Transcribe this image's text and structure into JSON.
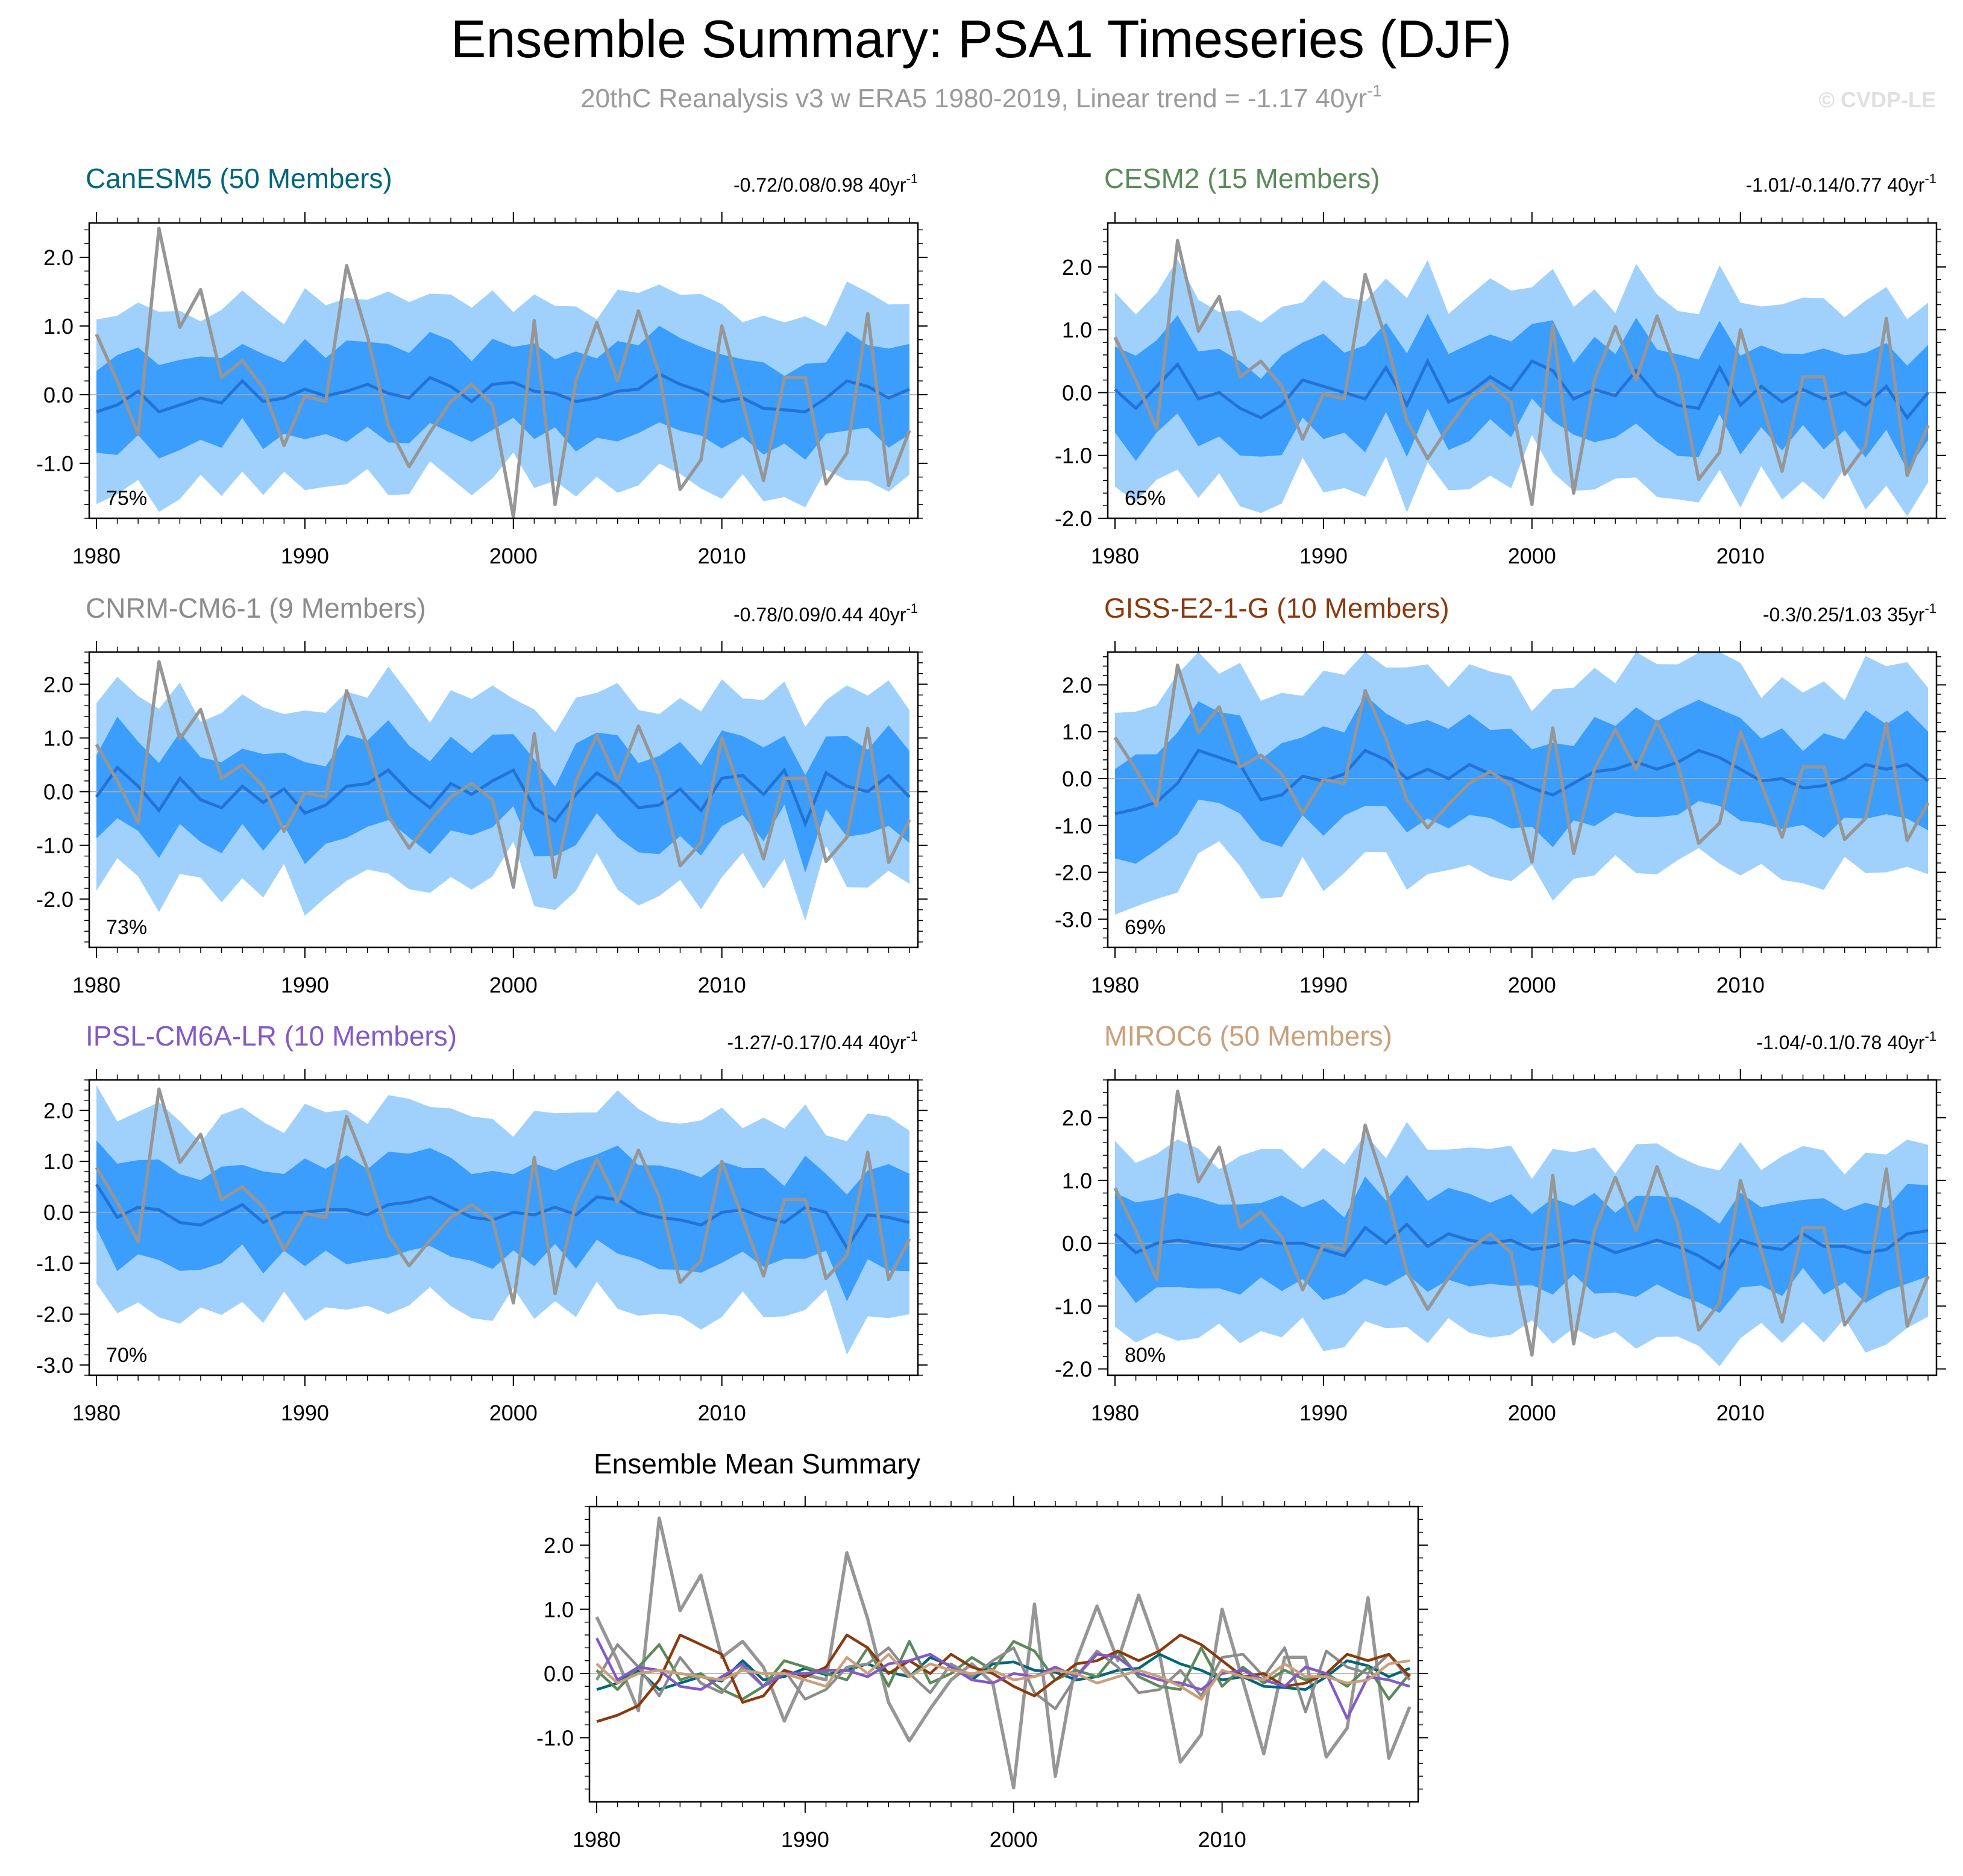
{
  "title": "Ensemble Summary: PSA1 Timeseries (DJF)",
  "subtitle": "20thC Reanalysis v3 w ERA5 1980-2019, Linear trend = -1.17 40yr",
  "subtitle_sup": "-1",
  "credit": "© CVDP-LE",
  "colors": {
    "outer_band": "#9fd1fc",
    "inner_band": "#3b9dfc",
    "ensemble_mean": "#2373d6",
    "observed": "#969696",
    "zero_line": "#aaaaaa"
  },
  "observed": {
    "name": "20thC Reanalysis v3 w ERA5",
    "years": [
      1980,
      1981,
      1982,
      1983,
      1984,
      1985,
      1986,
      1987,
      1988,
      1989,
      1990,
      1991,
      1992,
      1993,
      1994,
      1995,
      1996,
      1997,
      1998,
      1999,
      2000,
      2001,
      2002,
      2003,
      2004,
      2005,
      2006,
      2007,
      2008,
      2009,
      2010,
      2011,
      2012,
      2013,
      2014,
      2015,
      2016,
      2017,
      2018,
      2019
    ],
    "values": [
      0.88,
      0.2,
      -0.58,
      2.42,
      0.98,
      1.53,
      0.25,
      0.5,
      0.1,
      -0.74,
      -0.02,
      -0.1,
      1.88,
      0.85,
      -0.45,
      -1.05,
      -0.55,
      -0.1,
      0.15,
      -0.15,
      -1.78,
      1.08,
      -1.6,
      0.2,
      1.05,
      0.2,
      1.22,
      0.3,
      -1.38,
      -0.95,
      1.0,
      -0.12,
      -1.25,
      0.25,
      0.25,
      -1.3,
      -0.85,
      1.18,
      -1.32,
      -0.52
    ]
  },
  "chart_data": [
    {
      "type": "area",
      "title": "CanESM5 (50 Members)",
      "title_color": "#00677a",
      "range_text": "-0.72/0.08/0.98 40yr",
      "range_sup": "-1",
      "percent_label": "75%",
      "x_start": 1980,
      "x_ticks": [
        "1980",
        "1990",
        "2000",
        "2010"
      ],
      "ylim": [
        -1.8,
        2.5
      ],
      "y_ticks": [
        "2.0",
        "1.0",
        "0.0",
        "-1.0"
      ],
      "y_tick_values": [
        2,
        1,
        0,
        -1
      ],
      "outer_scale": 1.0,
      "mean": [
        -0.25,
        -0.15,
        0.05,
        -0.25,
        -0.15,
        -0.05,
        -0.12,
        0.2,
        -0.1,
        -0.05,
        0.08,
        -0.02,
        0.05,
        0.15,
        0.02,
        -0.05,
        0.25,
        0.12,
        -0.1,
        0.15,
        0.18,
        0.05,
        0.02,
        -0.1,
        -0.05,
        0.05,
        0.08,
        0.3,
        0.15,
        0.05,
        -0.1,
        -0.05,
        -0.2,
        -0.22,
        -0.25,
        -0.05,
        0.2,
        0.12,
        -0.05,
        0.08
      ]
    },
    {
      "type": "area",
      "title": "CESM2 (15 Members)",
      "title_color": "#5a8a5a",
      "range_text": "-1.01/-0.14/0.77 40yr",
      "range_sup": "-1",
      "percent_label": "65%",
      "x_start": 1980,
      "x_ticks": [
        "1980",
        "1990",
        "2000",
        "2010"
      ],
      "ylim": [
        -2.0,
        2.7
      ],
      "y_ticks": [
        "2.0",
        "1.0",
        "0.0",
        "-1.0",
        "-2.0"
      ],
      "y_tick_values": [
        2,
        1,
        0,
        -1,
        -2
      ],
      "outer_scale": 1.15,
      "mean": [
        0.05,
        -0.25,
        0.1,
        0.45,
        -0.1,
        0.0,
        -0.25,
        -0.4,
        -0.2,
        0.2,
        0.1,
        0.0,
        -0.1,
        0.4,
        -0.2,
        0.5,
        -0.15,
        0.0,
        0.25,
        0.05,
        0.5,
        0.35,
        -0.1,
        0.05,
        -0.05,
        0.35,
        -0.05,
        -0.2,
        -0.25,
        0.4,
        -0.2,
        0.1,
        -0.15,
        0.05,
        -0.1,
        0.0,
        -0.2,
        0.1,
        -0.4,
        0.0
      ]
    },
    {
      "type": "area",
      "title": "CNRM-CM6-1 (9 Members)",
      "title_color": "#8c8c8c",
      "range_text": "-0.78/0.09/0.44 40yr",
      "range_sup": "-1",
      "percent_label": "73%",
      "x_start": 1980,
      "x_ticks": [
        "1980",
        "1990",
        "2000",
        "2010"
      ],
      "ylim": [
        -2.9,
        2.6
      ],
      "y_ticks": [
        "2.0",
        "1.0",
        "0.0",
        "-1.0",
        "-2.0"
      ],
      "y_tick_values": [
        2,
        1,
        0,
        -1,
        -2
      ],
      "outer_scale": 1.3,
      "mean": [
        -0.1,
        0.45,
        0.1,
        -0.35,
        0.25,
        -0.15,
        -0.3,
        0.1,
        -0.2,
        0.05,
        -0.4,
        -0.25,
        0.1,
        0.15,
        0.4,
        0.0,
        -0.3,
        0.15,
        -0.05,
        0.2,
        0.4,
        -0.3,
        -0.55,
        -0.05,
        0.35,
        0.1,
        -0.3,
        -0.25,
        0.05,
        -0.35,
        0.25,
        0.3,
        -0.05,
        0.4,
        -0.6,
        0.35,
        0.1,
        0.0,
        0.3,
        -0.1
      ]
    },
    {
      "type": "area",
      "title": "GISS-E2-1-G (10 Members)",
      "title_color": "#8b3a0e",
      "range_text": "-0.3/0.25/1.03 35yr",
      "range_sup": "-1",
      "percent_label": "69%",
      "x_start": 1980,
      "x_ticks": [
        "1980",
        "1990",
        "2000",
        "2010"
      ],
      "ylim": [
        -3.6,
        2.7
      ],
      "y_ticks": [
        "2.0",
        "1.0",
        "0.0",
        "-1.0",
        "-2.0",
        "-3.0"
      ],
      "y_tick_values": [
        2,
        1,
        0,
        -1,
        -2,
        -3
      ],
      "outer_scale": 1.6,
      "mean": [
        -0.75,
        -0.65,
        -0.5,
        -0.1,
        0.6,
        0.45,
        0.3,
        -0.45,
        -0.35,
        0.05,
        -0.05,
        0.1,
        0.6,
        0.4,
        0.0,
        0.2,
        0.0,
        0.3,
        0.1,
        0.0,
        -0.2,
        -0.35,
        -0.1,
        0.15,
        0.2,
        0.35,
        0.2,
        0.35,
        0.6,
        0.45,
        0.2,
        -0.05,
        0.0,
        -0.2,
        -0.15,
        0.0,
        0.3,
        0.2,
        0.3,
        -0.05
      ]
    },
    {
      "type": "area",
      "title": "IPSL-CM6A-LR (10 Members)",
      "title_color": "#8359c8",
      "range_text": "-1.27/-0.17/0.44 40yr",
      "range_sup": "-1",
      "percent_label": "70%",
      "x_start": 1980,
      "x_ticks": [
        "1980",
        "1990",
        "2000",
        "2010"
      ],
      "ylim": [
        -3.2,
        2.6
      ],
      "y_ticks": [
        "2.0",
        "1.0",
        "0.0",
        "-1.0",
        "-2.0",
        "-3.0"
      ],
      "y_tick_values": [
        2,
        1,
        0,
        -1,
        -2,
        -3
      ],
      "outer_scale": 1.45,
      "mean": [
        0.55,
        -0.1,
        0.1,
        0.05,
        -0.2,
        -0.25,
        -0.05,
        0.15,
        -0.2,
        0.0,
        0.0,
        0.05,
        0.05,
        -0.05,
        0.15,
        0.2,
        0.3,
        0.1,
        -0.1,
        -0.15,
        0.0,
        -0.05,
        0.1,
        -0.05,
        0.3,
        0.25,
        0.0,
        -0.1,
        -0.15,
        -0.25,
        0.0,
        0.05,
        -0.1,
        -0.2,
        0.1,
        0.0,
        -0.7,
        -0.05,
        -0.1,
        -0.2
      ]
    },
    {
      "type": "area",
      "title": "MIROC6 (50 Members)",
      "title_color": "#c9a07a",
      "range_text": "-1.04/-0.1/0.78 40yr",
      "range_sup": "-1",
      "percent_label": "80%",
      "x_start": 1980,
      "x_ticks": [
        "1980",
        "1990",
        "2000",
        "2010"
      ],
      "ylim": [
        -2.1,
        2.6
      ],
      "y_ticks": [
        "2.0",
        "1.0",
        "0.0",
        "-1.0",
        "-2.0"
      ],
      "y_tick_values": [
        2,
        1,
        0,
        -1,
        -2
      ],
      "outer_scale": 1.1,
      "mean": [
        0.15,
        -0.15,
        0.0,
        0.05,
        0.0,
        -0.05,
        -0.1,
        0.05,
        0.0,
        0.0,
        -0.1,
        -0.2,
        0.25,
        0.0,
        0.3,
        -0.05,
        0.15,
        0.05,
        0.0,
        0.05,
        -0.1,
        -0.05,
        0.05,
        0.0,
        -0.15,
        -0.05,
        0.05,
        -0.05,
        -0.2,
        -0.4,
        0.05,
        -0.05,
        -0.1,
        0.15,
        -0.05,
        -0.05,
        -0.15,
        -0.1,
        0.15,
        0.2
      ]
    },
    {
      "type": "line",
      "title": "Ensemble Mean Summary",
      "x_start": 1980,
      "x_ticks": [
        "1980",
        "1990",
        "2000",
        "2010"
      ],
      "ylim": [
        -2.0,
        2.6
      ],
      "y_ticks": [
        "2.0",
        "1.0",
        "0.0",
        "-1.0"
      ],
      "y_tick_values": [
        2,
        1,
        0,
        -1
      ],
      "series": [
        {
          "name": "CanESM5",
          "color": "#00677a"
        },
        {
          "name": "CESM2",
          "color": "#5a8a5a"
        },
        {
          "name": "CNRM-CM6-1",
          "color": "#8c8c8c"
        },
        {
          "name": "GISS-E2-1-G",
          "color": "#8b3a0e"
        },
        {
          "name": "IPSL-CM6A-LR",
          "color": "#8359c8"
        },
        {
          "name": "MIROC6",
          "color": "#c9a07a"
        }
      ]
    }
  ]
}
